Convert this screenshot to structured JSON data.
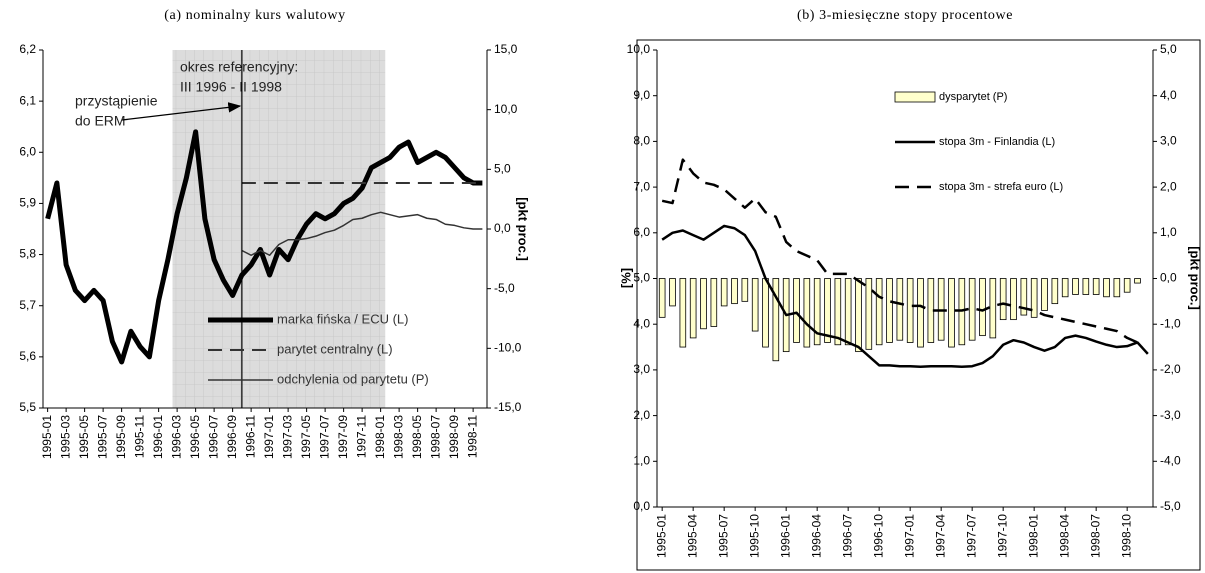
{
  "chart_data": [
    {
      "type": "line",
      "title": "(a) nominalny kurs walutowy",
      "y2label": "[pkt proc.]",
      "annotations": [
        "okres referencyjny:",
        "III 1996 - II 1998",
        "przystąpienie",
        "do ERM"
      ],
      "shaded_region": {
        "from": "1996-03",
        "to": "1998-01"
      },
      "categories": [
        "1995-01",
        null,
        "1995-03",
        null,
        "1995-05",
        null,
        "1995-07",
        null,
        "1995-09",
        null,
        "1995-11",
        null,
        "1996-01",
        null,
        "1996-03",
        null,
        "1996-05",
        null,
        "1996-07",
        null,
        "1996-09",
        null,
        "1996-11",
        null,
        "1997-01",
        null,
        "1997-03",
        null,
        "1997-05",
        null,
        "1997-07",
        null,
        "1997-09",
        null,
        "1997-11",
        null,
        "1998-01",
        null,
        "1998-03",
        null,
        "1998-05",
        null,
        "1998-07",
        null,
        "1998-09",
        null,
        "1998-11",
        null
      ],
      "series": [
        {
          "name": "marka fińska / ECU (L)",
          "color": "#000000",
          "values": [
            5.87,
            5.94,
            5.78,
            5.73,
            5.71,
            5.73,
            5.71,
            5.63,
            5.59,
            5.65,
            5.62,
            5.6,
            5.71,
            5.79,
            5.88,
            5.95,
            6.04,
            5.87,
            5.79,
            5.75,
            5.72,
            5.76,
            5.78,
            5.81,
            5.76,
            5.81,
            5.79,
            5.83,
            5.86,
            5.88,
            5.87,
            5.88,
            5.9,
            5.91,
            5.93,
            5.97,
            5.98,
            5.99,
            6.01,
            6.02,
            5.98,
            5.99,
            6.0,
            5.99,
            5.97,
            5.95,
            5.94,
            5.94
          ]
        },
        {
          "name": "parytet centralny (L)",
          "color": "#333333",
          "dashed": true,
          "values": [
            null,
            null,
            null,
            null,
            null,
            null,
            null,
            null,
            null,
            null,
            null,
            null,
            null,
            null,
            null,
            null,
            null,
            null,
            null,
            null,
            null,
            5.94,
            5.94,
            5.94,
            5.94,
            5.94,
            5.94,
            5.94,
            5.94,
            5.94,
            5.94,
            5.94,
            5.94,
            5.94,
            5.94,
            5.94,
            5.94,
            5.94,
            5.94,
            5.94,
            5.94,
            5.94,
            5.94,
            5.94,
            5.94,
            5.94,
            5.94,
            5.94
          ]
        },
        {
          "name": "odchylenia od parytetu (P)",
          "color": "#333333",
          "axis": "y2",
          "values": [
            null,
            null,
            null,
            null,
            null,
            null,
            null,
            null,
            null,
            null,
            null,
            null,
            null,
            null,
            null,
            null,
            null,
            null,
            null,
            null,
            null,
            -1.8,
            -2.2,
            -1.8,
            -2.2,
            -1.3,
            -0.9,
            -0.9,
            -0.8,
            -0.6,
            -0.3,
            -0.1,
            0.3,
            0.8,
            0.9,
            1.2,
            1.4,
            1.2,
            1.0,
            1.1,
            1.2,
            0.9,
            0.8,
            0.4,
            0.3,
            0.1,
            0.0,
            0.0
          ]
        }
      ],
      "ylim": [
        5.5,
        6.2
      ],
      "yticks": [
        {
          "value": 5.5,
          "label": "5,5"
        },
        {
          "value": 5.6,
          "label": "5,6"
        },
        {
          "value": 5.7,
          "label": "5,7"
        },
        {
          "value": 5.8,
          "label": "5,8"
        },
        {
          "value": 5.9,
          "label": "5,9"
        },
        {
          "value": 6.0,
          "label": "6,0"
        },
        {
          "value": 6.1,
          "label": "6,1"
        },
        {
          "value": 6.2,
          "label": "6,2"
        }
      ],
      "y2lim": [
        -15,
        15
      ],
      "y2ticks": [
        {
          "value": -15,
          "label": "-15,0"
        },
        {
          "value": -10,
          "label": "-10,0"
        },
        {
          "value": -5,
          "label": "-5,0"
        },
        {
          "value": 0,
          "label": "0,0"
        },
        {
          "value": 5,
          "label": "5,0"
        },
        {
          "value": 10,
          "label": "10,0"
        },
        {
          "value": 15,
          "label": "15,0"
        }
      ],
      "legend": "lower right",
      "grid": false
    },
    {
      "type": "combo",
      "title": "(b) 3-miesięczne stopy procentowe",
      "ylabel": "[%]",
      "y2label": "[pkt proc.]",
      "categories": [
        "1995-01",
        null,
        null,
        "1995-04",
        null,
        null,
        "1995-07",
        null,
        null,
        "1995-10",
        null,
        null,
        "1996-01",
        null,
        null,
        "1996-04",
        null,
        null,
        "1996-07",
        null,
        null,
        "1996-10",
        null,
        null,
        "1997-01",
        null,
        null,
        "1997-04",
        null,
        null,
        "1997-07",
        null,
        null,
        "1997-10",
        null,
        null,
        "1998-01",
        null,
        null,
        "1998-04",
        null,
        null,
        "1998-07",
        null,
        null,
        "1998-10",
        null,
        null
      ],
      "series": [
        {
          "name": "dysparytet (P)",
          "type": "bar",
          "color": "#ffffcc",
          "axis": "y2",
          "values": [
            -0.85,
            -0.6,
            -1.5,
            -1.3,
            -1.1,
            -1.05,
            -0.6,
            -0.55,
            -0.5,
            -1.15,
            -1.5,
            -1.8,
            -1.6,
            -1.4,
            -1.5,
            -1.45,
            -1.4,
            -1.45,
            -1.45,
            -1.6,
            -1.55,
            -1.45,
            -1.4,
            -1.35,
            -1.4,
            -1.5,
            -1.4,
            -1.35,
            -1.5,
            -1.45,
            -1.35,
            -1.25,
            -1.3,
            -0.9,
            -0.9,
            -0.8,
            -0.85,
            -0.7,
            -0.55,
            -0.4,
            -0.35,
            -0.35,
            -0.35,
            -0.4,
            -0.4,
            -0.3,
            -0.1,
            null
          ]
        },
        {
          "name": "stopa 3m - Finlandia (L)",
          "type": "line",
          "color": "#000000",
          "values": [
            5.85,
            6.0,
            6.05,
            5.95,
            5.85,
            6.0,
            6.15,
            6.1,
            5.95,
            5.6,
            5.0,
            4.6,
            4.2,
            4.25,
            4.0,
            3.8,
            3.75,
            3.7,
            3.6,
            3.5,
            3.3,
            3.1,
            3.1,
            3.08,
            3.08,
            3.07,
            3.08,
            3.08,
            3.08,
            3.07,
            3.08,
            3.15,
            3.3,
            3.55,
            3.65,
            3.6,
            3.5,
            3.42,
            3.5,
            3.7,
            3.75,
            3.7,
            3.62,
            3.55,
            3.5,
            3.52,
            3.6,
            3.35
          ]
        },
        {
          "name": "stopa 3m - strefa euro (L)",
          "type": "line",
          "color": "#000000",
          "dashed": true,
          "values": [
            6.7,
            6.65,
            7.6,
            7.3,
            7.1,
            7.05,
            6.95,
            6.75,
            6.55,
            6.75,
            6.45,
            6.35,
            5.8,
            5.6,
            5.5,
            5.4,
            5.1,
            5.1,
            5.1,
            4.95,
            4.8,
            4.6,
            4.5,
            4.45,
            4.4,
            4.4,
            4.3,
            4.3,
            4.3,
            4.3,
            4.35,
            4.3,
            4.4,
            4.45,
            4.4,
            4.35,
            4.3,
            4.2,
            4.15,
            4.1,
            4.05,
            4.0,
            3.95,
            3.9,
            3.85,
            3.7,
            3.6,
            null
          ]
        }
      ],
      "ylim": [
        0,
        10
      ],
      "yticks": [
        {
          "value": 0,
          "label": "0,0"
        },
        {
          "value": 1,
          "label": "1,0"
        },
        {
          "value": 2,
          "label": "2,0"
        },
        {
          "value": 3,
          "label": "3,0"
        },
        {
          "value": 4,
          "label": "4,0"
        },
        {
          "value": 5,
          "label": "5,0"
        },
        {
          "value": 6,
          "label": "6,0"
        },
        {
          "value": 7,
          "label": "7,0"
        },
        {
          "value": 8,
          "label": "8,0"
        },
        {
          "value": 9,
          "label": "9,0"
        },
        {
          "value": 10,
          "label": "10,0"
        }
      ],
      "y2lim": [
        -5,
        5
      ],
      "y2ticks": [
        {
          "value": -5,
          "label": "-5,0"
        },
        {
          "value": -4,
          "label": "-4,0"
        },
        {
          "value": -3,
          "label": "-3,0"
        },
        {
          "value": -2,
          "label": "-2,0"
        },
        {
          "value": -1,
          "label": "-1,0"
        },
        {
          "value": 0,
          "label": "0,0"
        },
        {
          "value": 1,
          "label": "1,0"
        },
        {
          "value": 2,
          "label": "2,0"
        },
        {
          "value": 3,
          "label": "3,0"
        },
        {
          "value": 4,
          "label": "4,0"
        },
        {
          "value": 5,
          "label": "5,0"
        }
      ],
      "legend": "upper center",
      "grid": false
    }
  ]
}
